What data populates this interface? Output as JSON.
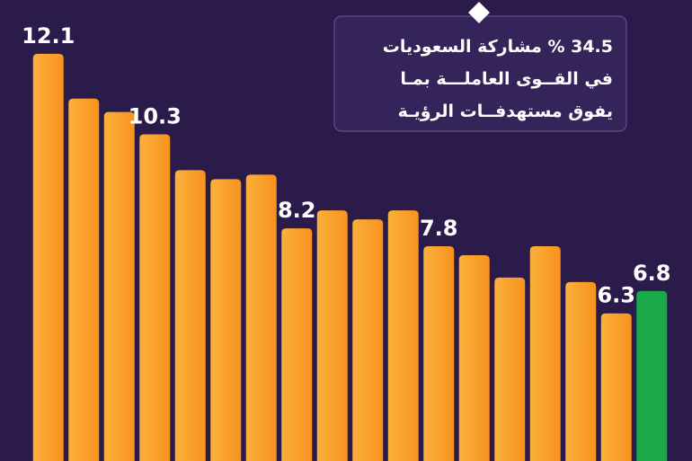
{
  "chart_data": {
    "type": "bar",
    "title_lines": [
      "34.5 % مشاركة السعوديات",
      "في القــوى العاملـــة بمـا",
      "يفوق مستهدفــات الرؤيـة"
    ],
    "values": [
      12.1,
      11.1,
      10.8,
      10.3,
      9.5,
      9.3,
      9.4,
      8.2,
      8.6,
      8.4,
      8.6,
      7.8,
      7.6,
      7.1,
      7.8,
      7.0,
      6.3,
      6.8
    ],
    "show_label": [
      true,
      false,
      false,
      true,
      false,
      false,
      false,
      true,
      false,
      false,
      false,
      true,
      false,
      false,
      false,
      false,
      true,
      true
    ],
    "colors": [
      "#f7931e",
      "#f7931e",
      "#f7931e",
      "#f7931e",
      "#f7931e",
      "#f7931e",
      "#f7931e",
      "#f7931e",
      "#f7931e",
      "#f7931e",
      "#f7931e",
      "#f7931e",
      "#f7931e",
      "#f7931e",
      "#f7931e",
      "#f7931e",
      "#f7931e",
      "#1aa84b"
    ],
    "ylim": [
      3,
      12.5
    ]
  }
}
